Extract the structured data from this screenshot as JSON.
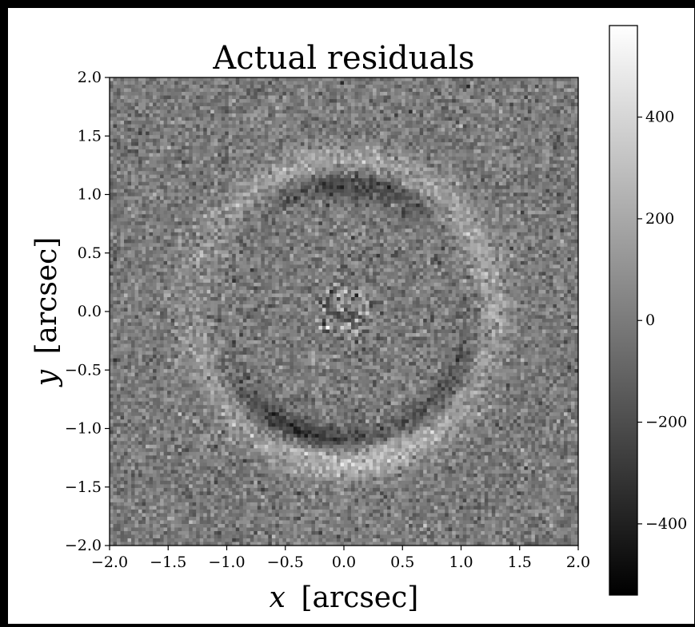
{
  "chart_data": {
    "type": "heatmap",
    "title": "Actual residuals",
    "xlabel_var": "x",
    "xlabel_unit": "[arcsec]",
    "ylabel_var": "y",
    "ylabel_unit": "[arcsec]",
    "xlim": [
      -2.0,
      2.0
    ],
    "ylim": [
      -2.0,
      2.0
    ],
    "xticks": [
      "−2.0",
      "−1.5",
      "−1.0",
      "−0.5",
      "0.0",
      "0.5",
      "1.0",
      "1.5",
      "2.0"
    ],
    "yticks": [
      "−2.0",
      "−1.5",
      "−1.0",
      "−0.5",
      "0.0",
      "0.5",
      "1.0",
      "1.5",
      "2.0"
    ],
    "colormap": "greys (black to white)",
    "colorbar": {
      "range": [
        -540,
        580
      ],
      "ticks": [
        -400,
        -200,
        0,
        200,
        400
      ],
      "tick_labels": [
        "−400",
        "−200",
        "0",
        "200",
        "400"
      ]
    },
    "grid": false,
    "features": {
      "description_numbers": "ring of residual structure (Einstein-ring shaped)",
      "ring_center": [
        0.0,
        0.0
      ],
      "ring_radius": 1.2,
      "bright_arc_positive": [
        {
          "center_angle_deg": -80,
          "amplitude": 300
        },
        {
          "center_angle_deg": 100,
          "amplitude": 200
        },
        {
          "center_angle_deg": 15,
          "amplitude": 180
        },
        {
          "center_angle_deg": 200,
          "amplitude": 120
        }
      ],
      "dark_arc_negative": [
        {
          "center_angle_deg": -110,
          "amplitude": -350
        },
        {
          "center_angle_deg": 85,
          "amplitude": -300
        },
        {
          "center_angle_deg": -40,
          "amplitude": -200
        }
      ],
      "noise_sigma": 90
    }
  }
}
